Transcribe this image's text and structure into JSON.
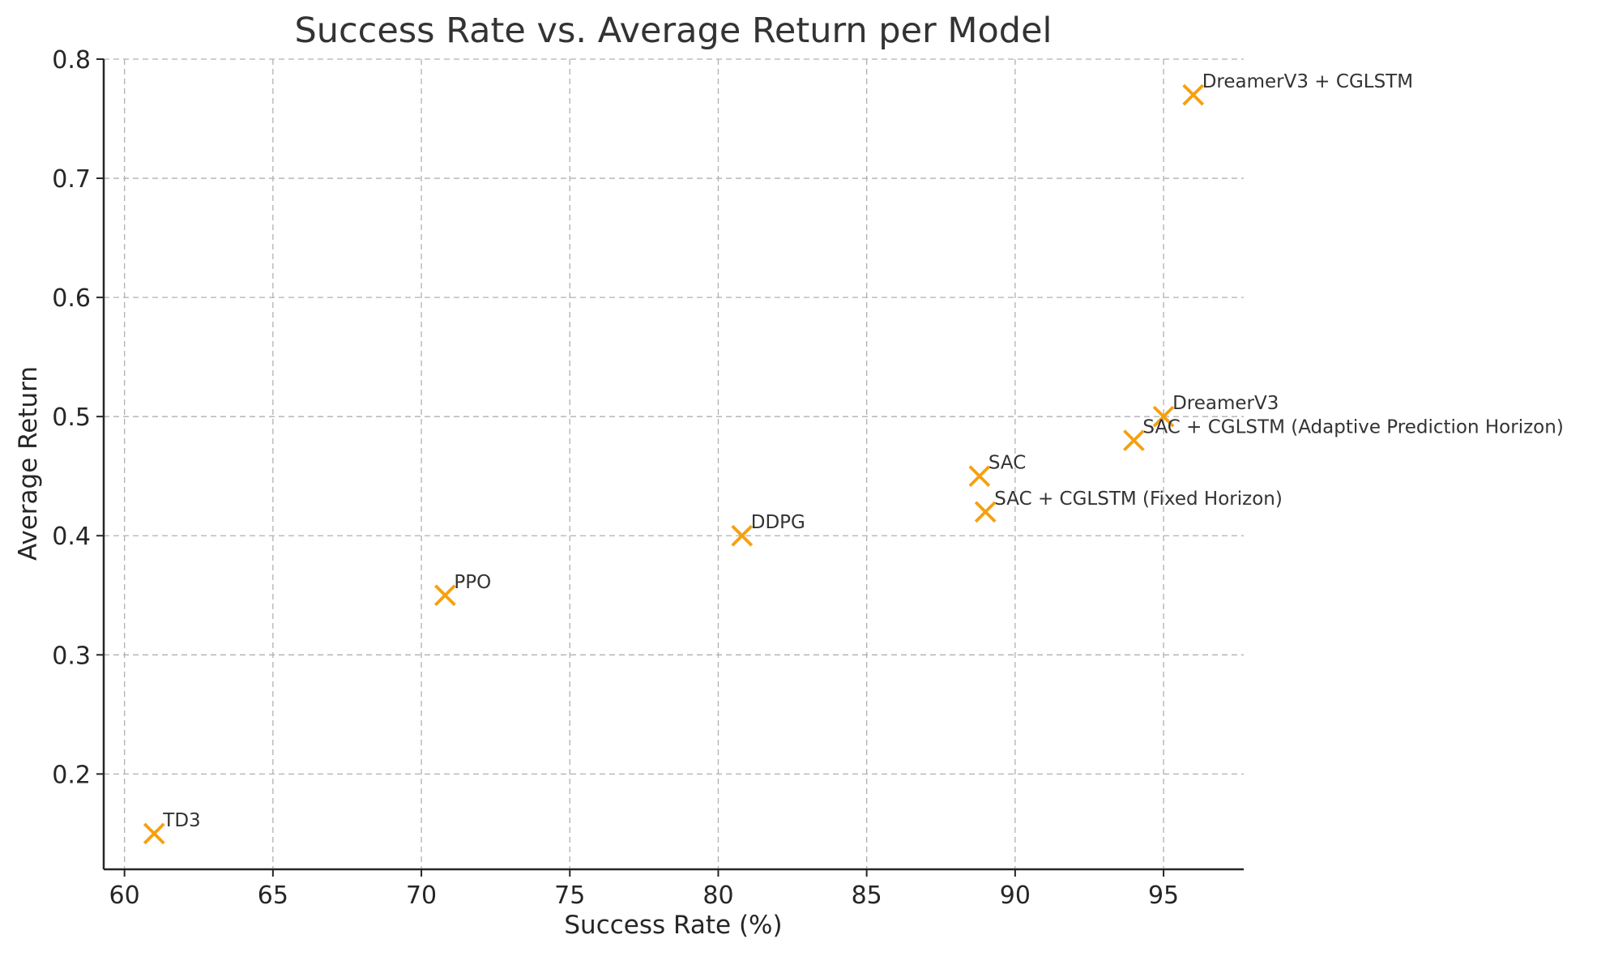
{
  "chart_data": {
    "type": "scatter",
    "title": "Success Rate vs. Average Return per Model",
    "xlabel": "Success Rate (%)",
    "ylabel": "Average Return",
    "xlim": [
      59.3,
      97.7
    ],
    "ylim": [
      0.12,
      0.8
    ],
    "xticks": [
      60,
      65,
      70,
      75,
      80,
      85,
      90,
      95
    ],
    "yticks": [
      0.2,
      0.3,
      0.4,
      0.5,
      0.6,
      0.7,
      0.8
    ],
    "xtick_labels": [
      "60",
      "65",
      "70",
      "75",
      "80",
      "85",
      "90",
      "95"
    ],
    "ytick_labels": [
      "0.2",
      "0.3",
      "0.4",
      "0.5",
      "0.6",
      "0.7",
      "0.8"
    ],
    "grid": true,
    "marker": "x",
    "marker_color": "#f5a00f",
    "points": [
      {
        "label": "TD3",
        "x": 61.0,
        "y": 0.15
      },
      {
        "label": "PPO",
        "x": 70.8,
        "y": 0.35
      },
      {
        "label": "DDPG",
        "x": 80.8,
        "y": 0.4
      },
      {
        "label": "SAC",
        "x": 88.8,
        "y": 0.45
      },
      {
        "label": "SAC + CGLSTM (Fixed Horizon)",
        "x": 89.0,
        "y": 0.42
      },
      {
        "label": "SAC + CGLSTM (Adaptive Prediction Horizon)",
        "x": 94.0,
        "y": 0.48
      },
      {
        "label": "DreamerV3",
        "x": 95.0,
        "y": 0.5
      },
      {
        "label": "DreamerV3 + CGLSTM",
        "x": 96.0,
        "y": 0.77
      }
    ]
  }
}
